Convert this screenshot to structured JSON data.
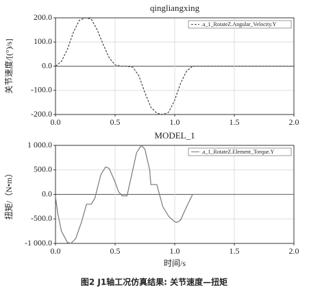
{
  "chart_data": [
    {
      "type": "line",
      "title": "qingliangxing",
      "y_label": "关节速度/[(°)/s]",
      "xlim": [
        0,
        2
      ],
      "xticks": [
        {
          "value": 0,
          "label": "0.0"
        },
        0.5,
        {
          "value": 1,
          "label": "1.0"
        },
        1.5,
        {
          "value": 2,
          "label": "2.0"
        }
      ],
      "ylim": [
        -200,
        200
      ],
      "yticks": [
        {
          "value": 200,
          "label": "200.0"
        },
        {
          "value": 100,
          "label": "100.0"
        },
        {
          "value": 0,
          "label": "0.0"
        },
        {
          "value": -100,
          "label": "-100.0"
        },
        {
          "value": -200,
          "label": "-200.0"
        }
      ],
      "grid": true,
      "legend": "upper right",
      "x": [
        0,
        0.05,
        0.1,
        0.15,
        0.2,
        0.25,
        0.3,
        0.35,
        0.4,
        0.45,
        0.5,
        0.55,
        0.6,
        0.65,
        0.7,
        0.75,
        0.8,
        0.85,
        0.9,
        0.95,
        1.0,
        1.05,
        1.1,
        1.15,
        1.2,
        2.0
      ],
      "series": [
        {
          "name": ".a_1_RotateZ.Angular_Velocity.Y",
          "color": "#444444",
          "line_style": "dashed",
          "values": [
            0,
            20,
            70,
            140,
            190,
            200,
            195,
            150,
            90,
            35,
            5,
            0,
            0,
            -5,
            -40,
            -110,
            -170,
            -195,
            -200,
            -190,
            -140,
            -70,
            -20,
            0,
            0,
            0
          ]
        }
      ]
    },
    {
      "type": "line",
      "title": "MODEL_1",
      "y_label": "扭矩/（N•m）",
      "x_label": "时间/s",
      "xlim": [
        0,
        2
      ],
      "xticks": [
        {
          "value": 0,
          "label": "0.0"
        },
        0.5,
        {
          "value": 1,
          "label": "1.0"
        },
        1.5,
        {
          "value": 2,
          "label": "2.0"
        }
      ],
      "ylim": [
        -1000,
        1000
      ],
      "yticks": [
        {
          "value": 1000,
          "label": "1 000.0"
        },
        {
          "value": 500,
          "label": "500.0"
        },
        {
          "value": 0,
          "label": "0.0"
        },
        {
          "value": -500,
          "label": "-500.0"
        },
        {
          "value": -1000,
          "label": "-1 000.0"
        }
      ],
      "grid": true,
      "legend": "upper right",
      "x": [
        0,
        0.02,
        0.05,
        0.1,
        0.13,
        0.17,
        0.22,
        0.26,
        0.3,
        0.33,
        0.38,
        0.42,
        0.45,
        0.5,
        0.53,
        0.56,
        0.6,
        0.63,
        0.68,
        0.72,
        0.75,
        0.79,
        0.8,
        0.85,
        0.9,
        0.95,
        1.0,
        1.02,
        1.05,
        1.1,
        1.13,
        1.15,
        2.0
      ],
      "series": [
        {
          "name": ".a_1_RotateZ.Element_Torque.Y",
          "color": "#777777",
          "line_style": "solid",
          "values": [
            -50,
            -400,
            -750,
            -980,
            -1000,
            -900,
            -550,
            -200,
            -200,
            -80,
            400,
            560,
            530,
            250,
            50,
            -30,
            -30,
            300,
            850,
            1000,
            920,
            500,
            200,
            200,
            -250,
            -450,
            -560,
            -570,
            -520,
            -250,
            -100,
            0,
            0
          ]
        }
      ]
    }
  ],
  "caption": "图2   J1轴工况仿真结果: 关节速度—扭矩"
}
